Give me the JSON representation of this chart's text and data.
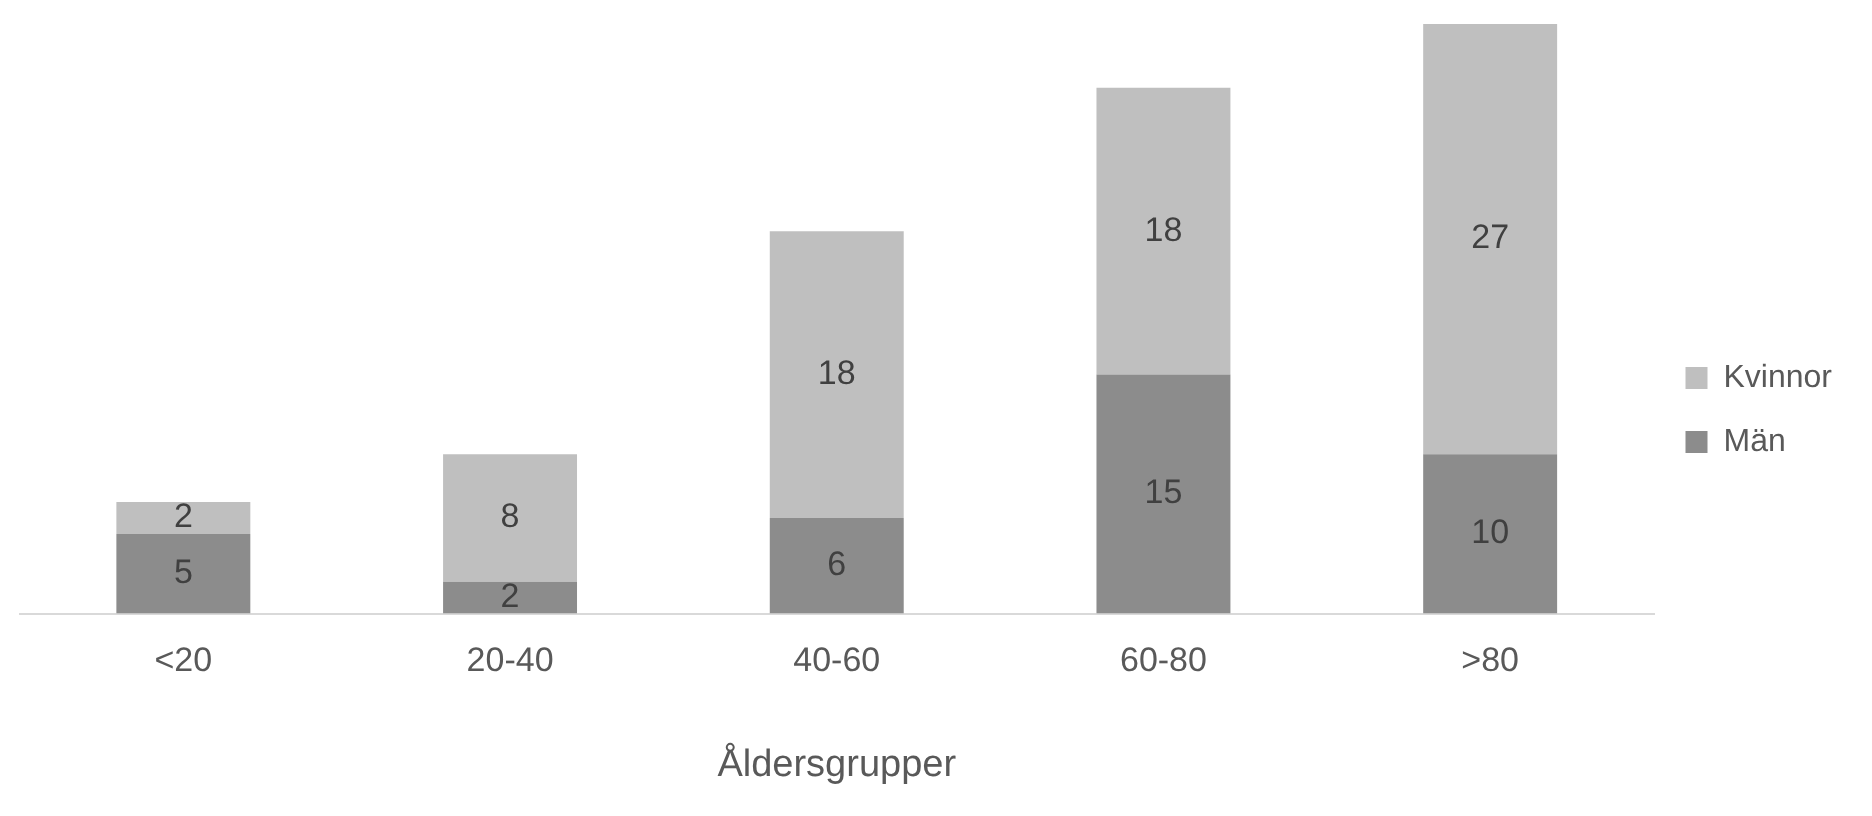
{
  "chart_data": {
    "type": "bar",
    "stacked": true,
    "xlabel": "Åldersgrupper",
    "categories": [
      "<20",
      "20-40",
      "40-60",
      "60-80",
      ">80"
    ],
    "series": [
      {
        "name": "Män",
        "color": "#8c8c8c",
        "values": [
          5,
          2,
          6,
          15,
          10
        ]
      },
      {
        "name": "Kvinnor",
        "color": "#bfbfbf",
        "values": [
          2,
          8,
          18,
          18,
          27
        ]
      }
    ],
    "data_labels": true,
    "legend": "right",
    "grid": false
  }
}
